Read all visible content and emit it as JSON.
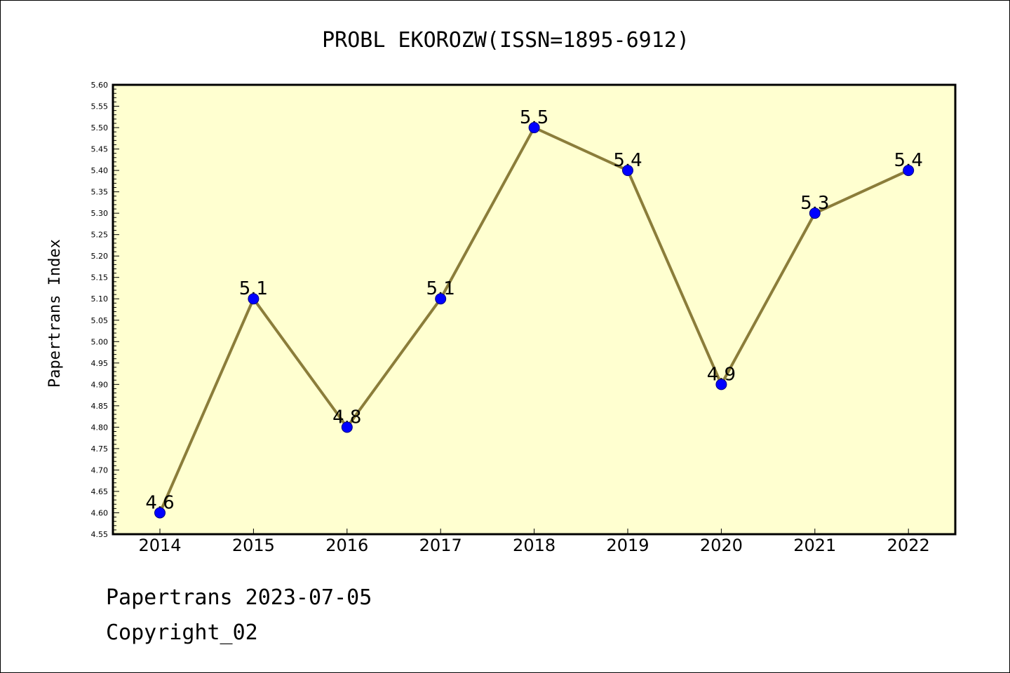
{
  "chart_data": {
    "type": "line",
    "title": "PROBL EKOROZW(ISSN=1895-6912)",
    "xlabel": "",
    "ylabel": "Papertrans Index",
    "categories": [
      "2014",
      "2015",
      "2016",
      "2017",
      "2018",
      "2019",
      "2020",
      "2021",
      "2022"
    ],
    "values": [
      4.6,
      5.1,
      4.8,
      5.1,
      5.5,
      5.4,
      4.9,
      5.3,
      5.4
    ],
    "data_labels": [
      "4.6",
      "5.1",
      "4.8",
      "5.1",
      "5.5",
      "5.4",
      "4.9",
      "5.3",
      "5.4"
    ],
    "ylim": [
      4.55,
      5.6
    ],
    "yticks": [
      "4.55",
      "4.60",
      "4.65",
      "4.70",
      "4.75",
      "4.80",
      "4.85",
      "4.90",
      "4.95",
      "5.00",
      "5.05",
      "5.10",
      "5.15",
      "5.20",
      "5.25",
      "5.30",
      "5.35",
      "5.40",
      "5.45",
      "5.50",
      "5.55",
      "5.60"
    ],
    "grid": false,
    "legend": "none",
    "colors": {
      "plot_background": "#ffffd0",
      "line": "#8b7d3a",
      "marker_fill": "#0000ff",
      "marker_edge": "#000080"
    }
  },
  "footer": {
    "date_text": "Papertrans 2023-07-05",
    "copyright_text": "Copyright_02"
  }
}
